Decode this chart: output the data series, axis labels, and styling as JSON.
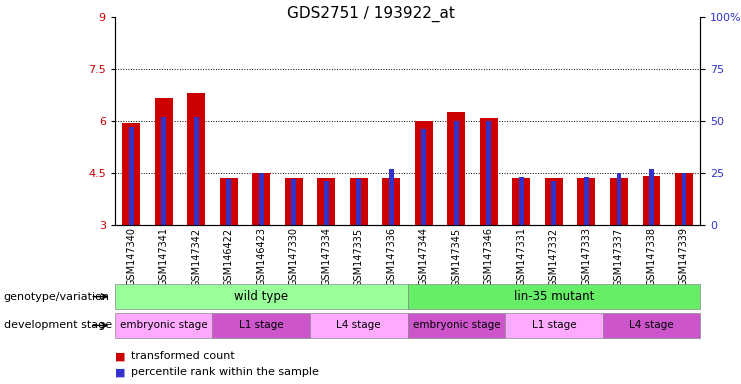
{
  "title": "GDS2751 / 193922_at",
  "samples": [
    "GSM147340",
    "GSM147341",
    "GSM147342",
    "GSM146422",
    "GSM146423",
    "GSM147330",
    "GSM147334",
    "GSM147335",
    "GSM147336",
    "GSM147344",
    "GSM147345",
    "GSM147346",
    "GSM147331",
    "GSM147332",
    "GSM147333",
    "GSM147337",
    "GSM147338",
    "GSM147339"
  ],
  "red_values": [
    5.95,
    6.65,
    6.8,
    4.35,
    4.5,
    4.35,
    4.35,
    4.35,
    4.35,
    6.0,
    6.25,
    6.1,
    4.35,
    4.35,
    4.35,
    4.35,
    4.4,
    4.5
  ],
  "blue_values": [
    47,
    52,
    52,
    22,
    25,
    22,
    21,
    22,
    27,
    46,
    50,
    50,
    23,
    21,
    23,
    25,
    27,
    25
  ],
  "ymin": 3.0,
  "ymax": 9.0,
  "yticks": [
    3,
    4.5,
    6,
    7.5,
    9
  ],
  "blue_yticks": [
    0,
    25,
    50,
    75,
    100
  ],
  "blue_yticklabels": [
    "0",
    "25",
    "50",
    "75",
    "100%"
  ],
  "grid_values": [
    4.5,
    6.0,
    7.5
  ],
  "red_color": "#cc0000",
  "blue_color": "#3333cc",
  "genotype_groups": [
    {
      "label": "wild type",
      "start": 0,
      "end": 8,
      "color": "#99ff99"
    },
    {
      "label": "lin-35 mutant",
      "start": 9,
      "end": 17,
      "color": "#66ee66"
    }
  ],
  "stage_groups": [
    {
      "label": "embryonic stage",
      "start": 0,
      "end": 2,
      "color": "#ffaaff"
    },
    {
      "label": "L1 stage",
      "start": 3,
      "end": 5,
      "color": "#cc55cc"
    },
    {
      "label": "L4 stage",
      "start": 6,
      "end": 8,
      "color": "#ffaaff"
    },
    {
      "label": "embryonic stage",
      "start": 9,
      "end": 11,
      "color": "#cc55cc"
    },
    {
      "label": "L1 stage",
      "start": 12,
      "end": 14,
      "color": "#ffaaff"
    },
    {
      "label": "L4 stage",
      "start": 15,
      "end": 17,
      "color": "#cc55cc"
    }
  ],
  "legend_items": [
    {
      "label": "transformed count",
      "color": "#cc0000"
    },
    {
      "label": "percentile rank within the sample",
      "color": "#3333cc"
    }
  ],
  "xlabel_genotype": "genotype/variation",
  "xlabel_stage": "development stage",
  "title_fontsize": 11,
  "tick_fontsize": 7
}
